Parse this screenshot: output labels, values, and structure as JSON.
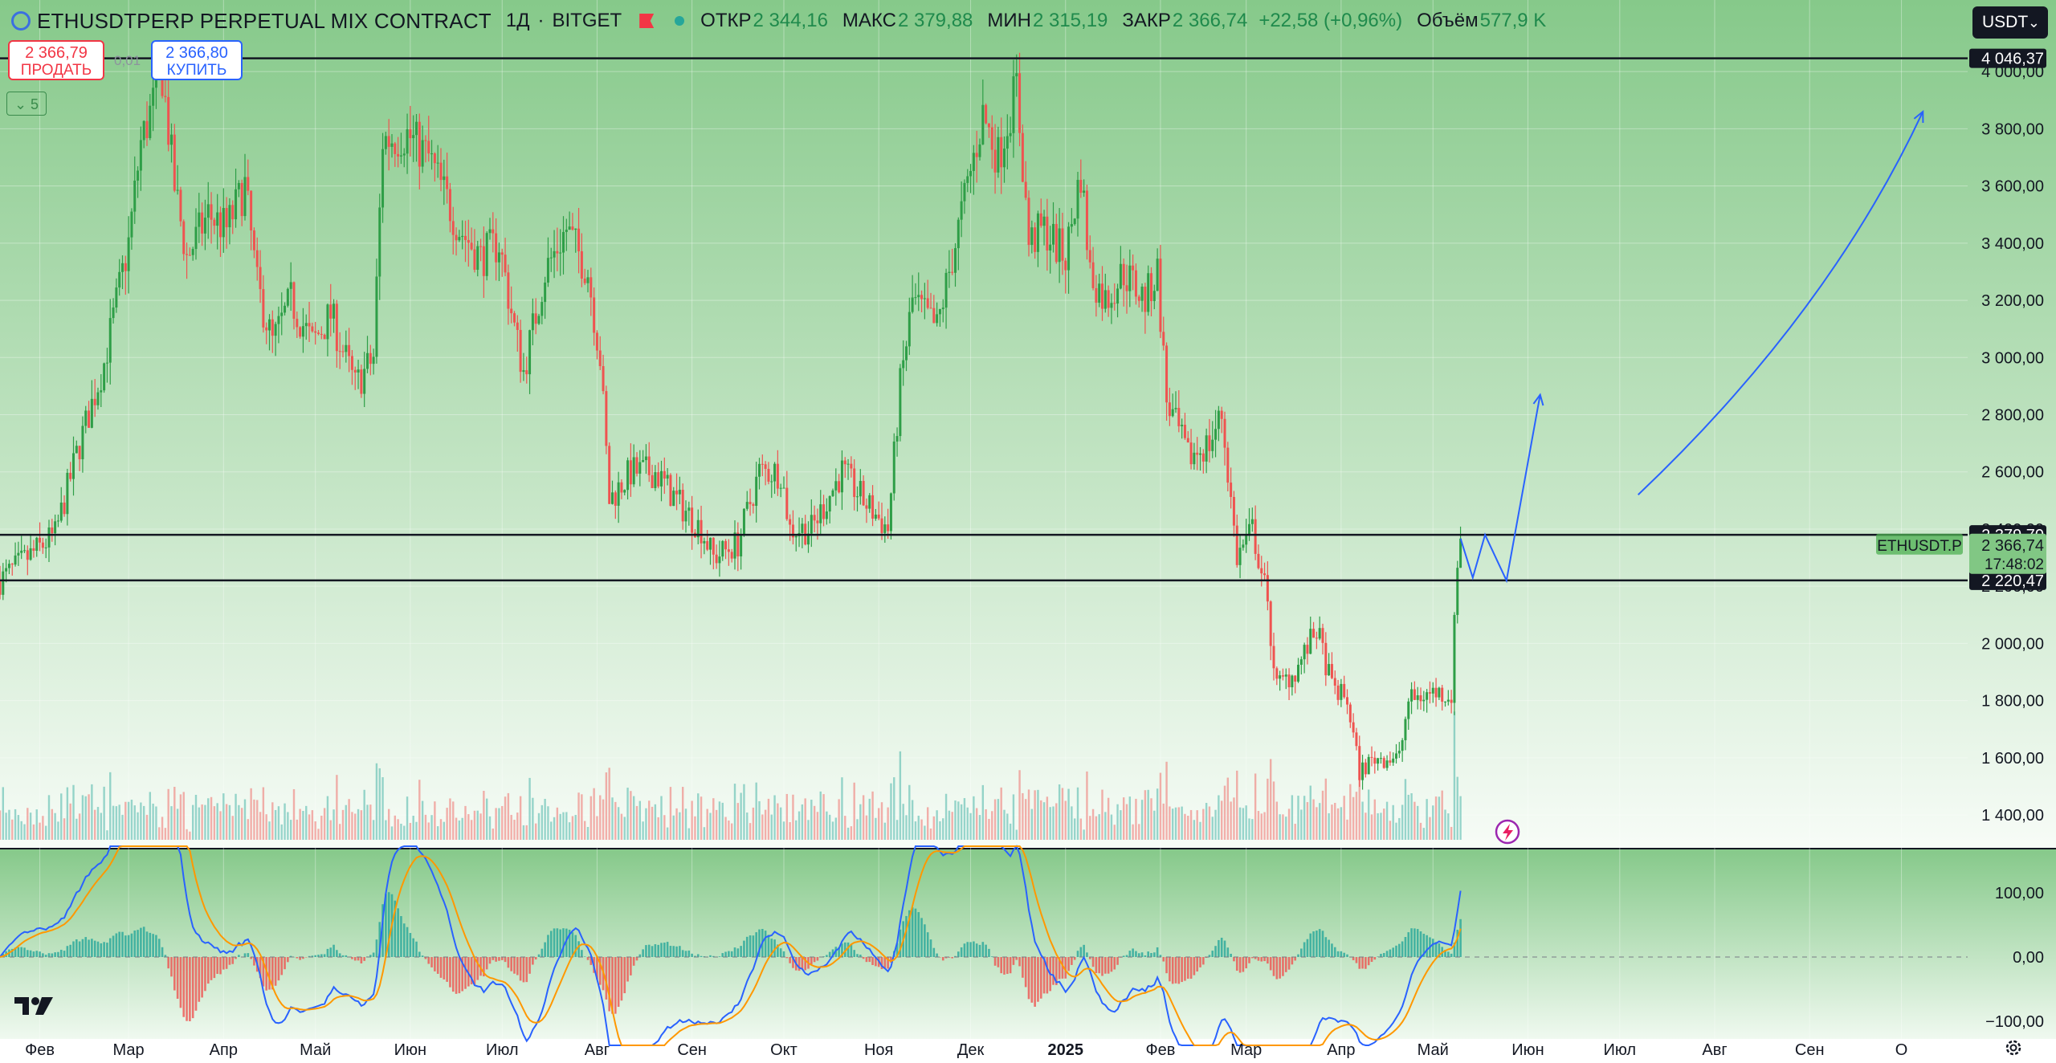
{
  "header": {
    "symbol": "ETHUSDTPERP PERPETUAL MIX CONTRACT",
    "interval": "1Д",
    "exchange": "BITGET",
    "open_label": "ОТКР",
    "open": "2 344,16",
    "high_label": "МАКС",
    "high": "2 379,88",
    "low_label": "МИН",
    "low": "2 315,19",
    "close_label": "ЗАКР",
    "close": "2 366,74",
    "change": "+22,58 (+0,96%)",
    "volume_label": "Объём",
    "volume": "577,9 K"
  },
  "trade": {
    "sell_price": "2 366,79",
    "sell_label": "ПРОДАТЬ",
    "spread": "0,01",
    "buy_price": "2 366,80",
    "buy_label": "КУПИТЬ"
  },
  "indicator_toggle": "5",
  "currency_button": "USDT",
  "colors": {
    "up": "#26a69a",
    "up_candle": "#2e9e47",
    "down": "#ef5350",
    "macd": "#2962ff",
    "signal": "#ff9800",
    "bg_green": "#86c98a",
    "projection": "#2962ff"
  },
  "chart_data": [
    {
      "type": "candlestick",
      "symbol_tag": "ETHUSDT.P",
      "y_ticks": [
        "4 000,00",
        "3 800,00",
        "3 600,00",
        "3 400,00",
        "3 200,00",
        "3 000,00",
        "2 800,00",
        "2 600,00",
        "2 400,00",
        "2 200,00",
        "2 000,00",
        "1 800,00",
        "1 600,00",
        "1 400,00"
      ],
      "y_tick_values": [
        4000,
        3800,
        3600,
        3400,
        3200,
        3000,
        2800,
        2600,
        2400,
        2200,
        2000,
        1800,
        1600,
        1400
      ],
      "ylim": [
        1330,
        4110
      ],
      "x_ticks": [
        "Фев",
        "Мар",
        "Апр",
        "Май",
        "Июн",
        "Июл",
        "Авг",
        "Сен",
        "Окт",
        "Ноя",
        "Дек",
        "2025",
        "Фев",
        "Мар",
        "Апр",
        "Май",
        "Июн",
        "Июл",
        "Авг",
        "Сен",
        "О"
      ],
      "x_tick_dates": [
        "2024-02-01",
        "2024-03-01",
        "2024-04-01",
        "2024-05-01",
        "2024-06-01",
        "2024-07-01",
        "2024-08-01",
        "2024-09-01",
        "2024-10-01",
        "2024-11-01",
        "2024-12-01",
        "2025-01-01",
        "2025-02-01",
        "2025-03-01",
        "2025-04-01",
        "2025-05-01",
        "2025-06-01",
        "2025-07-01",
        "2025-08-01",
        "2025-09-01",
        "2025-10-01"
      ],
      "xlim": [
        "2024-01-19",
        "2025-10-20"
      ],
      "price_path": [
        [
          "2024-01-19",
          2220
        ],
        [
          "2024-01-28",
          2300
        ],
        [
          "2024-02-06",
          2380
        ],
        [
          "2024-02-13",
          2660
        ],
        [
          "2024-02-22",
          2980
        ],
        [
          "2024-03-01",
          3400
        ],
        [
          "2024-03-05",
          3750
        ],
        [
          "2024-03-12",
          3990
        ],
        [
          "2024-03-16",
          3600
        ],
        [
          "2024-03-20",
          3350
        ],
        [
          "2024-03-27",
          3500
        ],
        [
          "2024-04-02",
          3450
        ],
        [
          "2024-04-08",
          3600
        ],
        [
          "2024-04-12",
          3250
        ],
        [
          "2024-04-17",
          3050
        ],
        [
          "2024-04-23",
          3200
        ],
        [
          "2024-04-30",
          3050
        ],
        [
          "2024-05-06",
          3150
        ],
        [
          "2024-05-14",
          2900
        ],
        [
          "2024-05-20",
          3000
        ],
        [
          "2024-05-23",
          3760
        ],
        [
          "2024-05-31",
          3780
        ],
        [
          "2024-06-07",
          3700
        ],
        [
          "2024-06-13",
          3550
        ],
        [
          "2024-06-17",
          3450
        ],
        [
          "2024-06-24",
          3350
        ],
        [
          "2024-06-30",
          3400
        ],
        [
          "2024-07-05",
          3100
        ],
        [
          "2024-07-08",
          2950
        ],
        [
          "2024-07-15",
          3300
        ],
        [
          "2024-07-22",
          3450
        ],
        [
          "2024-07-29",
          3300
        ],
        [
          "2024-08-02",
          3000
        ],
        [
          "2024-08-05",
          2500
        ],
        [
          "2024-08-12",
          2600
        ],
        [
          "2024-08-20",
          2600
        ],
        [
          "2024-08-27",
          2500
        ],
        [
          "2024-09-04",
          2400
        ],
        [
          "2024-09-08",
          2300
        ],
        [
          "2024-09-16",
          2350
        ],
        [
          "2024-09-23",
          2600
        ],
        [
          "2024-09-30",
          2600
        ],
        [
          "2024-10-03",
          2400
        ],
        [
          "2024-10-10",
          2400
        ],
        [
          "2024-10-20",
          2600
        ],
        [
          "2024-10-27",
          2500
        ],
        [
          "2024-11-04",
          2400
        ],
        [
          "2024-11-08",
          2900
        ],
        [
          "2024-11-12",
          3200
        ],
        [
          "2024-11-20",
          3100
        ],
        [
          "2024-11-28",
          3500
        ],
        [
          "2024-12-05",
          3850
        ],
        [
          "2024-12-10",
          3700
        ],
        [
          "2024-12-16",
          3950
        ],
        [
          "2024-12-20",
          3400
        ],
        [
          "2024-12-25",
          3450
        ],
        [
          "2025-01-01",
          3350
        ],
        [
          "2025-01-06",
          3650
        ],
        [
          "2025-01-09",
          3300
        ],
        [
          "2025-01-14",
          3200
        ],
        [
          "2025-01-20",
          3300
        ],
        [
          "2025-01-27",
          3200
        ],
        [
          "2025-01-31",
          3300
        ],
        [
          "2025-02-03",
          2850
        ],
        [
          "2025-02-10",
          2650
        ],
        [
          "2025-02-17",
          2700
        ],
        [
          "2025-02-21",
          2800
        ],
        [
          "2025-02-26",
          2300
        ],
        [
          "2025-03-03",
          2400
        ],
        [
          "2025-03-07",
          2200
        ],
        [
          "2025-03-11",
          1850
        ],
        [
          "2025-03-17",
          1900
        ],
        [
          "2025-03-24",
          2050
        ],
        [
          "2025-03-29",
          1850
        ],
        [
          "2025-04-03",
          1800
        ],
        [
          "2025-04-07",
          1550
        ],
        [
          "2025-04-12",
          1600
        ],
        [
          "2025-04-20",
          1600
        ],
        [
          "2025-04-23",
          1800
        ],
        [
          "2025-05-01",
          1830
        ],
        [
          "2025-05-07",
          1820
        ],
        [
          "2025-05-09",
          2300
        ],
        [
          "2025-05-10",
          2366.74
        ]
      ],
      "horizontal_levels": [
        {
          "price": 4046.37,
          "label": "4 046,37"
        },
        {
          "price": 2379.7,
          "label": "2 379,70"
        },
        {
          "price": 2220.47,
          "label": "2 220,47"
        }
      ],
      "last_price": {
        "price": 2366.74,
        "label": "2 366,74",
        "timer": "17:48:02"
      },
      "projection": {
        "zigzag": [
          [
            "2025-05-10",
            2366.74
          ],
          [
            "2025-05-14",
            2230
          ],
          [
            "2025-05-18",
            2380
          ],
          [
            "2025-05-25",
            2220
          ],
          [
            "2025-06-05",
            2870
          ]
        ],
        "curve": [
          [
            "2025-07-07",
            2520
          ],
          [
            "2025-09-07",
            3150
          ],
          [
            "2025-10-08",
            3860
          ]
        ]
      }
    },
    {
      "type": "macd",
      "y_ticks": [
        "100,00",
        "0,00",
        "−100,00"
      ],
      "y_tick_values": [
        100,
        0,
        -100
      ],
      "ylim": [
        -125,
        160
      ]
    }
  ]
}
